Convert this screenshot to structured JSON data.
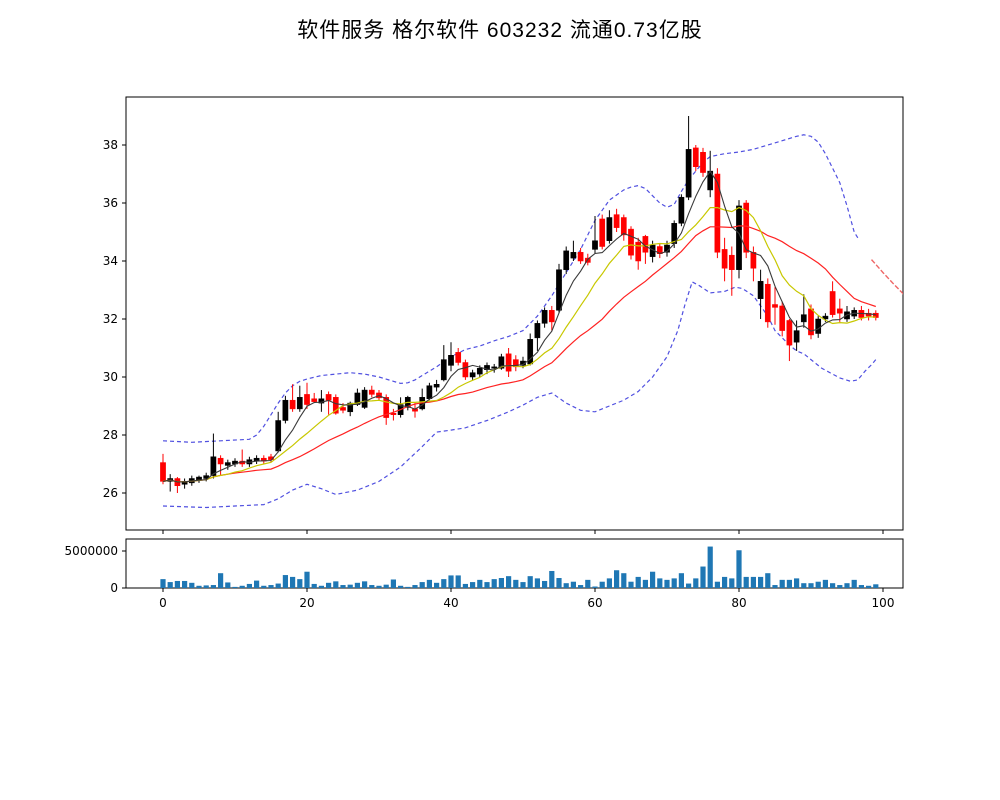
{
  "title": "软件服务 格尔软件 603232 流通0.73亿股",
  "chart_data": {
    "type": "candlestick+volume",
    "title": "软件服务 格尔软件 603232 流通0.73亿股",
    "legend_position": "none",
    "grid": false,
    "price_axis": {
      "ticks": [
        26,
        28,
        30,
        32,
        34,
        36,
        38
      ],
      "range": [
        24.72,
        39.66
      ]
    },
    "x_axis": {
      "ticks": [
        0,
        20,
        40,
        60,
        80,
        100
      ],
      "range": [
        -5.1,
        102.8
      ]
    },
    "volume_axis": {
      "tick_values": [
        0,
        5000000
      ],
      "tick_labels": [
        "0",
        "5000000"
      ],
      "range": [
        0,
        5950000
      ]
    },
    "ma_windows": {
      "black": 5,
      "yellow": 10,
      "red": 20
    },
    "colors": {
      "up_candle": "#000000",
      "down_candle": "#ff0000",
      "ma_black": "#3a3a3a",
      "ma_yellow": "#c8c800",
      "ma_red": "#ff2222",
      "band_blue": "#5050e0",
      "red_tail": "#ee6666",
      "volume_bar": "#1f77b4",
      "axis": "#000000"
    },
    "candles_ohlc": [
      [
        27.05,
        27.35,
        26.3,
        26.4
      ],
      [
        26.4,
        26.65,
        26.05,
        26.5
      ],
      [
        26.5,
        26.55,
        26.0,
        26.25
      ],
      [
        26.3,
        26.5,
        26.15,
        26.4
      ],
      [
        26.35,
        26.6,
        26.25,
        26.5
      ],
      [
        26.45,
        26.6,
        26.35,
        26.55
      ],
      [
        26.5,
        26.7,
        26.4,
        26.6
      ],
      [
        26.6,
        28.05,
        26.5,
        27.25
      ],
      [
        27.2,
        27.3,
        26.6,
        27.0
      ],
      [
        26.95,
        27.15,
        26.8,
        27.05
      ],
      [
        27.0,
        27.2,
        26.9,
        27.1
      ],
      [
        27.1,
        27.5,
        26.9,
        27.0
      ],
      [
        27.0,
        27.25,
        26.9,
        27.15
      ],
      [
        27.1,
        27.3,
        27.0,
        27.2
      ],
      [
        27.2,
        27.3,
        27.0,
        27.1
      ],
      [
        27.25,
        27.35,
        27.05,
        27.15
      ],
      [
        27.45,
        28.8,
        27.4,
        28.5
      ],
      [
        28.5,
        29.35,
        28.4,
        29.2
      ],
      [
        29.2,
        29.75,
        28.8,
        28.9
      ],
      [
        28.9,
        29.7,
        28.8,
        29.3
      ],
      [
        29.4,
        29.8,
        28.9,
        29.05
      ],
      [
        29.25,
        29.45,
        29.1,
        29.15
      ],
      [
        29.1,
        29.55,
        28.8,
        29.25
      ],
      [
        29.4,
        29.5,
        28.7,
        29.2
      ],
      [
        29.3,
        29.4,
        28.7,
        28.75
      ],
      [
        28.95,
        29.1,
        28.75,
        28.85
      ],
      [
        28.8,
        29.15,
        28.65,
        29.1
      ],
      [
        29.05,
        29.6,
        29.0,
        29.45
      ],
      [
        28.95,
        29.65,
        28.9,
        29.55
      ],
      [
        29.55,
        29.7,
        29.3,
        29.4
      ],
      [
        29.45,
        29.55,
        29.2,
        29.28
      ],
      [
        29.3,
        29.4,
        28.35,
        28.6
      ],
      [
        28.75,
        28.9,
        28.5,
        28.7
      ],
      [
        28.7,
        29.3,
        28.6,
        29.05
      ],
      [
        28.95,
        29.35,
        28.85,
        29.3
      ],
      [
        28.9,
        29.1,
        28.6,
        28.82
      ],
      [
        28.9,
        29.6,
        28.85,
        29.3
      ],
      [
        29.25,
        29.8,
        29.2,
        29.7
      ],
      [
        29.65,
        29.9,
        29.5,
        29.75
      ],
      [
        29.9,
        31.1,
        29.85,
        30.6
      ],
      [
        30.4,
        31.2,
        30.2,
        30.75
      ],
      [
        30.85,
        31.0,
        30.4,
        30.5
      ],
      [
        30.5,
        30.6,
        29.9,
        30.0
      ],
      [
        30.0,
        30.25,
        29.9,
        30.15
      ],
      [
        30.1,
        30.4,
        30.0,
        30.3
      ],
      [
        30.25,
        30.5,
        30.1,
        30.4
      ],
      [
        30.3,
        30.45,
        30.15,
        30.35
      ],
      [
        30.3,
        30.8,
        30.25,
        30.7
      ],
      [
        30.8,
        31.0,
        30.0,
        30.2
      ],
      [
        30.6,
        30.75,
        30.2,
        30.35
      ],
      [
        30.4,
        30.7,
        30.3,
        30.55
      ],
      [
        30.45,
        31.5,
        30.4,
        31.3
      ],
      [
        31.35,
        31.95,
        30.9,
        31.85
      ],
      [
        31.85,
        32.4,
        31.7,
        32.3
      ],
      [
        32.3,
        32.45,
        31.6,
        31.9
      ],
      [
        32.3,
        33.9,
        32.2,
        33.7
      ],
      [
        33.7,
        34.5,
        33.55,
        34.35
      ],
      [
        34.1,
        34.7,
        34.0,
        34.3
      ],
      [
        34.3,
        34.45,
        33.9,
        34.0
      ],
      [
        34.1,
        34.25,
        33.85,
        33.95
      ],
      [
        34.4,
        35.55,
        34.25,
        34.7
      ],
      [
        35.45,
        35.6,
        34.4,
        34.5
      ],
      [
        34.7,
        35.75,
        34.6,
        35.5
      ],
      [
        35.6,
        35.8,
        35.0,
        35.15
      ],
      [
        35.5,
        35.6,
        34.7,
        34.9
      ],
      [
        35.1,
        35.2,
        34.05,
        34.2
      ],
      [
        34.65,
        34.8,
        33.7,
        34.0
      ],
      [
        34.85,
        34.9,
        33.9,
        34.3
      ],
      [
        34.15,
        34.7,
        33.95,
        34.55
      ],
      [
        34.5,
        34.6,
        34.1,
        34.25
      ],
      [
        34.3,
        34.7,
        34.15,
        34.55
      ],
      [
        34.6,
        35.4,
        34.45,
        35.3
      ],
      [
        35.3,
        36.3,
        35.2,
        36.2
      ],
      [
        36.2,
        39.0,
        36.1,
        37.85
      ],
      [
        37.9,
        38.0,
        37.1,
        37.25
      ],
      [
        37.75,
        37.9,
        36.9,
        37.05
      ],
      [
        36.45,
        37.8,
        36.2,
        37.1
      ],
      [
        37.0,
        37.2,
        34.1,
        34.3
      ],
      [
        34.4,
        34.8,
        33.3,
        33.75
      ],
      [
        34.2,
        34.5,
        32.8,
        33.7
      ],
      [
        33.7,
        36.1,
        33.4,
        35.9
      ],
      [
        36.0,
        36.1,
        34.1,
        34.3
      ],
      [
        34.3,
        34.5,
        33.3,
        33.75
      ],
      [
        32.7,
        33.7,
        32.0,
        33.3
      ],
      [
        33.2,
        33.4,
        31.7,
        31.9
      ],
      [
        32.5,
        33.1,
        31.8,
        32.4
      ],
      [
        32.45,
        32.6,
        31.4,
        31.6
      ],
      [
        31.95,
        32.0,
        30.55,
        31.1
      ],
      [
        31.2,
        31.95,
        30.9,
        31.6
      ],
      [
        31.9,
        32.85,
        31.7,
        32.15
      ],
      [
        32.35,
        32.5,
        31.3,
        31.45
      ],
      [
        31.5,
        32.1,
        31.35,
        32.0
      ],
      [
        32.0,
        32.2,
        31.9,
        32.1
      ],
      [
        32.95,
        33.3,
        32.05,
        32.15
      ],
      [
        32.35,
        32.7,
        31.9,
        32.2
      ],
      [
        32.0,
        32.45,
        31.9,
        32.25
      ],
      [
        32.1,
        32.4,
        32.0,
        32.3
      ],
      [
        32.3,
        32.45,
        31.95,
        32.05
      ],
      [
        32.2,
        32.35,
        31.95,
        32.1
      ],
      [
        32.2,
        32.3,
        31.95,
        32.05
      ]
    ],
    "volumes": [
      1200000,
      800000,
      950000,
      950000,
      700000,
      300000,
      350000,
      400000,
      2000000,
      750000,
      150000,
      300000,
      550000,
      1000000,
      300000,
      400000,
      600000,
      1750000,
      1500000,
      1200000,
      2200000,
      550000,
      300000,
      700000,
      900000,
      400000,
      450000,
      700000,
      900000,
      400000,
      300000,
      450000,
      1150000,
      300000,
      150000,
      400000,
      800000,
      1100000,
      700000,
      1200000,
      1700000,
      1700000,
      550000,
      800000,
      1100000,
      800000,
      1200000,
      1350000,
      1600000,
      1100000,
      800000,
      1600000,
      1300000,
      950000,
      2300000,
      1350000,
      650000,
      850000,
      400000,
      1100000,
      200000,
      850000,
      1300000,
      2400000,
      2000000,
      850000,
      1500000,
      1100000,
      2200000,
      1300000,
      1100000,
      1300000,
      2000000,
      600000,
      1300000,
      2900000,
      5600000,
      850000,
      1500000,
      1300000,
      5100000,
      1500000,
      1500000,
      1500000,
      2000000,
      400000,
      1100000,
      1100000,
      1300000,
      650000,
      650000,
      850000,
      1100000,
      650000,
      400000,
      650000,
      1100000,
      400000,
      300000,
      500000
    ],
    "band_upper": [
      [
        0,
        27.8
      ],
      [
        4,
        27.75
      ],
      [
        8,
        27.8
      ],
      [
        12,
        27.85
      ],
      [
        13,
        28.0
      ],
      [
        14,
        28.3
      ],
      [
        15,
        28.7
      ],
      [
        16,
        29.1
      ],
      [
        17,
        29.45
      ],
      [
        18,
        29.7
      ],
      [
        19,
        29.85
      ],
      [
        20,
        29.93
      ],
      [
        22,
        30.05
      ],
      [
        24,
        30.1
      ],
      [
        26,
        30.15
      ],
      [
        28,
        30.1
      ],
      [
        30,
        30.0
      ],
      [
        32,
        29.85
      ],
      [
        33,
        29.78
      ],
      [
        34,
        29.8
      ],
      [
        35,
        29.9
      ],
      [
        36,
        30.05
      ],
      [
        38,
        30.35
      ],
      [
        40,
        30.7
      ],
      [
        42,
        30.95
      ],
      [
        44,
        31.07
      ],
      [
        46,
        31.25
      ],
      [
        48,
        31.4
      ],
      [
        50,
        31.6
      ],
      [
        52,
        32.1
      ],
      [
        54,
        32.8
      ],
      [
        56,
        33.6
      ],
      [
        58,
        34.4
      ],
      [
        60,
        35.4
      ],
      [
        62,
        36.1
      ],
      [
        64,
        36.45
      ],
      [
        65,
        36.55
      ],
      [
        66,
        36.6
      ],
      [
        67,
        36.5
      ],
      [
        68,
        36.25
      ],
      [
        69,
        36.0
      ],
      [
        70,
        35.85
      ],
      [
        71,
        35.95
      ],
      [
        72,
        36.4
      ],
      [
        73,
        36.8
      ],
      [
        74,
        37.1
      ],
      [
        75,
        37.4
      ],
      [
        76,
        37.6
      ],
      [
        78,
        37.7
      ],
      [
        80,
        37.76
      ],
      [
        82,
        37.85
      ],
      [
        84,
        38.0
      ],
      [
        86,
        38.15
      ],
      [
        88,
        38.3
      ],
      [
        89,
        38.35
      ],
      [
        90,
        38.3
      ],
      [
        91,
        38.1
      ],
      [
        92,
        37.7
      ],
      [
        93,
        37.2
      ],
      [
        94,
        36.7
      ],
      [
        95,
        35.9
      ],
      [
        96,
        35.0
      ],
      [
        96.5,
        34.8
      ]
    ],
    "band_lower": [
      [
        0,
        25.55
      ],
      [
        6,
        25.5
      ],
      [
        10,
        25.55
      ],
      [
        14,
        25.6
      ],
      [
        16,
        25.8
      ],
      [
        18,
        26.1
      ],
      [
        20,
        26.3
      ],
      [
        22,
        26.15
      ],
      [
        24,
        25.95
      ],
      [
        27,
        26.1
      ],
      [
        30,
        26.4
      ],
      [
        33,
        26.9
      ],
      [
        36,
        27.6
      ],
      [
        38,
        28.1
      ],
      [
        40,
        28.17
      ],
      [
        42,
        28.25
      ],
      [
        45,
        28.5
      ],
      [
        48,
        28.8
      ],
      [
        50,
        29.03
      ],
      [
        52,
        29.3
      ],
      [
        54,
        29.45
      ],
      [
        56,
        29.1
      ],
      [
        58,
        28.85
      ],
      [
        60,
        28.8
      ],
      [
        62,
        29.0
      ],
      [
        64,
        29.2
      ],
      [
        66,
        29.5
      ],
      [
        68,
        30.0
      ],
      [
        70,
        30.7
      ],
      [
        71.5,
        31.6
      ],
      [
        72.5,
        32.5
      ],
      [
        73.5,
        33.28
      ],
      [
        74.5,
        33.15
      ],
      [
        76,
        32.9
      ],
      [
        78,
        32.95
      ],
      [
        79.5,
        33.1
      ],
      [
        80.5,
        33.05
      ],
      [
        82,
        32.8
      ],
      [
        83,
        32.45
      ],
      [
        84,
        32.1
      ],
      [
        85,
        31.6
      ],
      [
        86,
        31.35
      ],
      [
        87,
        31.1
      ],
      [
        88,
        30.9
      ],
      [
        89,
        30.8
      ],
      [
        90,
        30.6
      ],
      [
        91.5,
        30.3
      ],
      [
        93,
        30.1
      ],
      [
        94,
        29.97
      ],
      [
        95.5,
        29.85
      ],
      [
        96.5,
        29.9
      ],
      [
        97.5,
        30.2
      ],
      [
        98.5,
        30.45
      ],
      [
        99,
        30.6
      ]
    ],
    "red_tail": [
      [
        98.4,
        34.05
      ],
      [
        100,
        33.6
      ],
      [
        101.5,
        33.2
      ],
      [
        103,
        32.82
      ]
    ]
  }
}
